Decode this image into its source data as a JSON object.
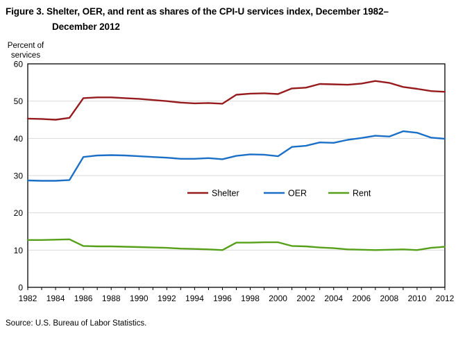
{
  "figure": {
    "title_line1": "Figure 3. Shelter, OER, and rent as shares of the CPI-U services index, December 1982–",
    "title_line2": "December 2012",
    "y_axis_unit": {
      "line1": "Percent of",
      "line2": "services"
    },
    "source_note": "Source: U.S. Bureau of Labor Statistics."
  },
  "colors": {
    "shelter": "#961b1e",
    "oer": "#1b6fc7",
    "rent": "#55a018",
    "grid": "#d9d9d9",
    "axis": "#000000",
    "text": "#000000"
  },
  "chart_data": {
    "type": "line",
    "title": "Figure 3. Shelter, OER, and rent as shares of the CPI-U services index, December 1982–December 2012",
    "xlabel": "",
    "ylabel": "Percent of services",
    "xlim": [
      1982,
      2012
    ],
    "ylim": [
      0,
      60
    ],
    "yticks": [
      0,
      10,
      20,
      30,
      40,
      50,
      60
    ],
    "xtick_labels": [
      1982,
      1984,
      1986,
      1988,
      1990,
      1992,
      1994,
      1996,
      1998,
      2000,
      2002,
      2004,
      2006,
      2008,
      2010,
      2012
    ],
    "grid": "horizontal",
    "legend_position": "inside-middle",
    "x": [
      1982,
      1983,
      1984,
      1985,
      1986,
      1987,
      1988,
      1989,
      1990,
      1991,
      1992,
      1993,
      1994,
      1995,
      1996,
      1997,
      1998,
      1999,
      2000,
      2001,
      2002,
      2003,
      2004,
      2005,
      2006,
      2007,
      2008,
      2009,
      2010,
      2011,
      2012
    ],
    "series": [
      {
        "name": "Shelter",
        "color": "#961b1e",
        "values": [
          45.3,
          45.2,
          45.0,
          45.5,
          50.8,
          51.0,
          51.0,
          50.8,
          50.6,
          50.3,
          50.0,
          49.6,
          49.4,
          49.5,
          49.3,
          51.7,
          52.0,
          52.1,
          51.9,
          53.4,
          53.6,
          54.6,
          54.5,
          54.4,
          54.7,
          55.4,
          54.9,
          53.8,
          53.3,
          52.7,
          52.5
        ]
      },
      {
        "name": "OER",
        "color": "#1b6fc7",
        "values": [
          28.7,
          28.6,
          28.6,
          28.8,
          35.0,
          35.4,
          35.5,
          35.4,
          35.2,
          35.0,
          34.8,
          34.5,
          34.5,
          34.7,
          34.4,
          35.3,
          35.7,
          35.6,
          35.2,
          37.7,
          38.0,
          38.9,
          38.8,
          39.6,
          40.1,
          40.7,
          40.5,
          41.9,
          41.5,
          40.2,
          39.9
        ]
      },
      {
        "name": "Rent",
        "color": "#55a018",
        "values": [
          12.7,
          12.7,
          12.8,
          12.9,
          11.1,
          11.0,
          11.0,
          10.9,
          10.8,
          10.7,
          10.6,
          10.4,
          10.3,
          10.2,
          10.0,
          12.0,
          12.0,
          12.1,
          12.1,
          11.1,
          11.0,
          10.7,
          10.5,
          10.2,
          10.1,
          10.0,
          10.1,
          10.2,
          10.0,
          10.6,
          10.9
        ]
      }
    ]
  }
}
